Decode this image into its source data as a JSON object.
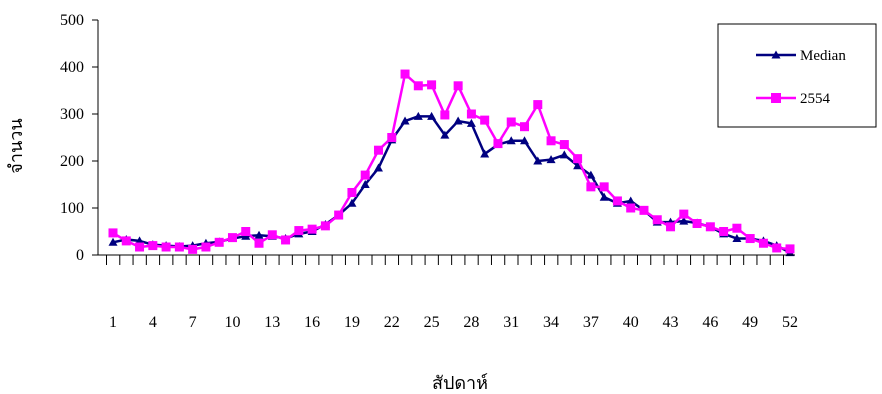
{
  "chart_data": {
    "type": "line",
    "title": "",
    "xlabel": "สัปดาห์",
    "ylabel": "จำนวน",
    "ylim": [
      0,
      500
    ],
    "yticks": [
      0,
      100,
      200,
      300,
      400,
      500
    ],
    "x": [
      1,
      2,
      3,
      4,
      5,
      6,
      7,
      8,
      9,
      10,
      11,
      12,
      13,
      14,
      15,
      16,
      17,
      18,
      19,
      20,
      21,
      22,
      23,
      24,
      25,
      26,
      27,
      28,
      29,
      30,
      31,
      32,
      33,
      34,
      35,
      36,
      37,
      38,
      39,
      40,
      41,
      42,
      43,
      44,
      45,
      46,
      47,
      48,
      49,
      50,
      51,
      52
    ],
    "x_tick_labels": [
      "1",
      "4",
      "7",
      "10",
      "13",
      "16",
      "19",
      "22",
      "25",
      "28",
      "31",
      "34",
      "37",
      "40",
      "43",
      "46",
      "49",
      "52"
    ],
    "grid": false,
    "legend_position": "top-right",
    "series": [
      {
        "name": "Median",
        "color": "#000080",
        "marker": "triangle",
        "values": [
          27,
          33,
          30,
          22,
          20,
          18,
          20,
          25,
          28,
          35,
          40,
          42,
          40,
          35,
          45,
          50,
          65,
          85,
          110,
          150,
          185,
          245,
          285,
          295,
          295,
          255,
          285,
          280,
          215,
          235,
          243,
          243,
          200,
          203,
          213,
          190,
          170,
          123,
          110,
          115,
          95,
          70,
          70,
          72,
          68,
          60,
          45,
          35,
          35,
          30,
          20,
          5
        ]
      },
      {
        "name": "2554",
        "color": "#FF00FF",
        "marker": "square",
        "values": [
          47,
          30,
          17,
          20,
          17,
          17,
          12,
          17,
          27,
          37,
          50,
          25,
          43,
          32,
          52,
          55,
          62,
          85,
          133,
          170,
          223,
          250,
          385,
          360,
          362,
          298,
          360,
          300,
          287,
          237,
          283,
          273,
          320,
          243,
          235,
          205,
          145,
          145,
          115,
          100,
          95,
          75,
          60,
          87,
          67,
          60,
          50,
          57,
          35,
          25,
          15,
          13
        ]
      }
    ]
  }
}
